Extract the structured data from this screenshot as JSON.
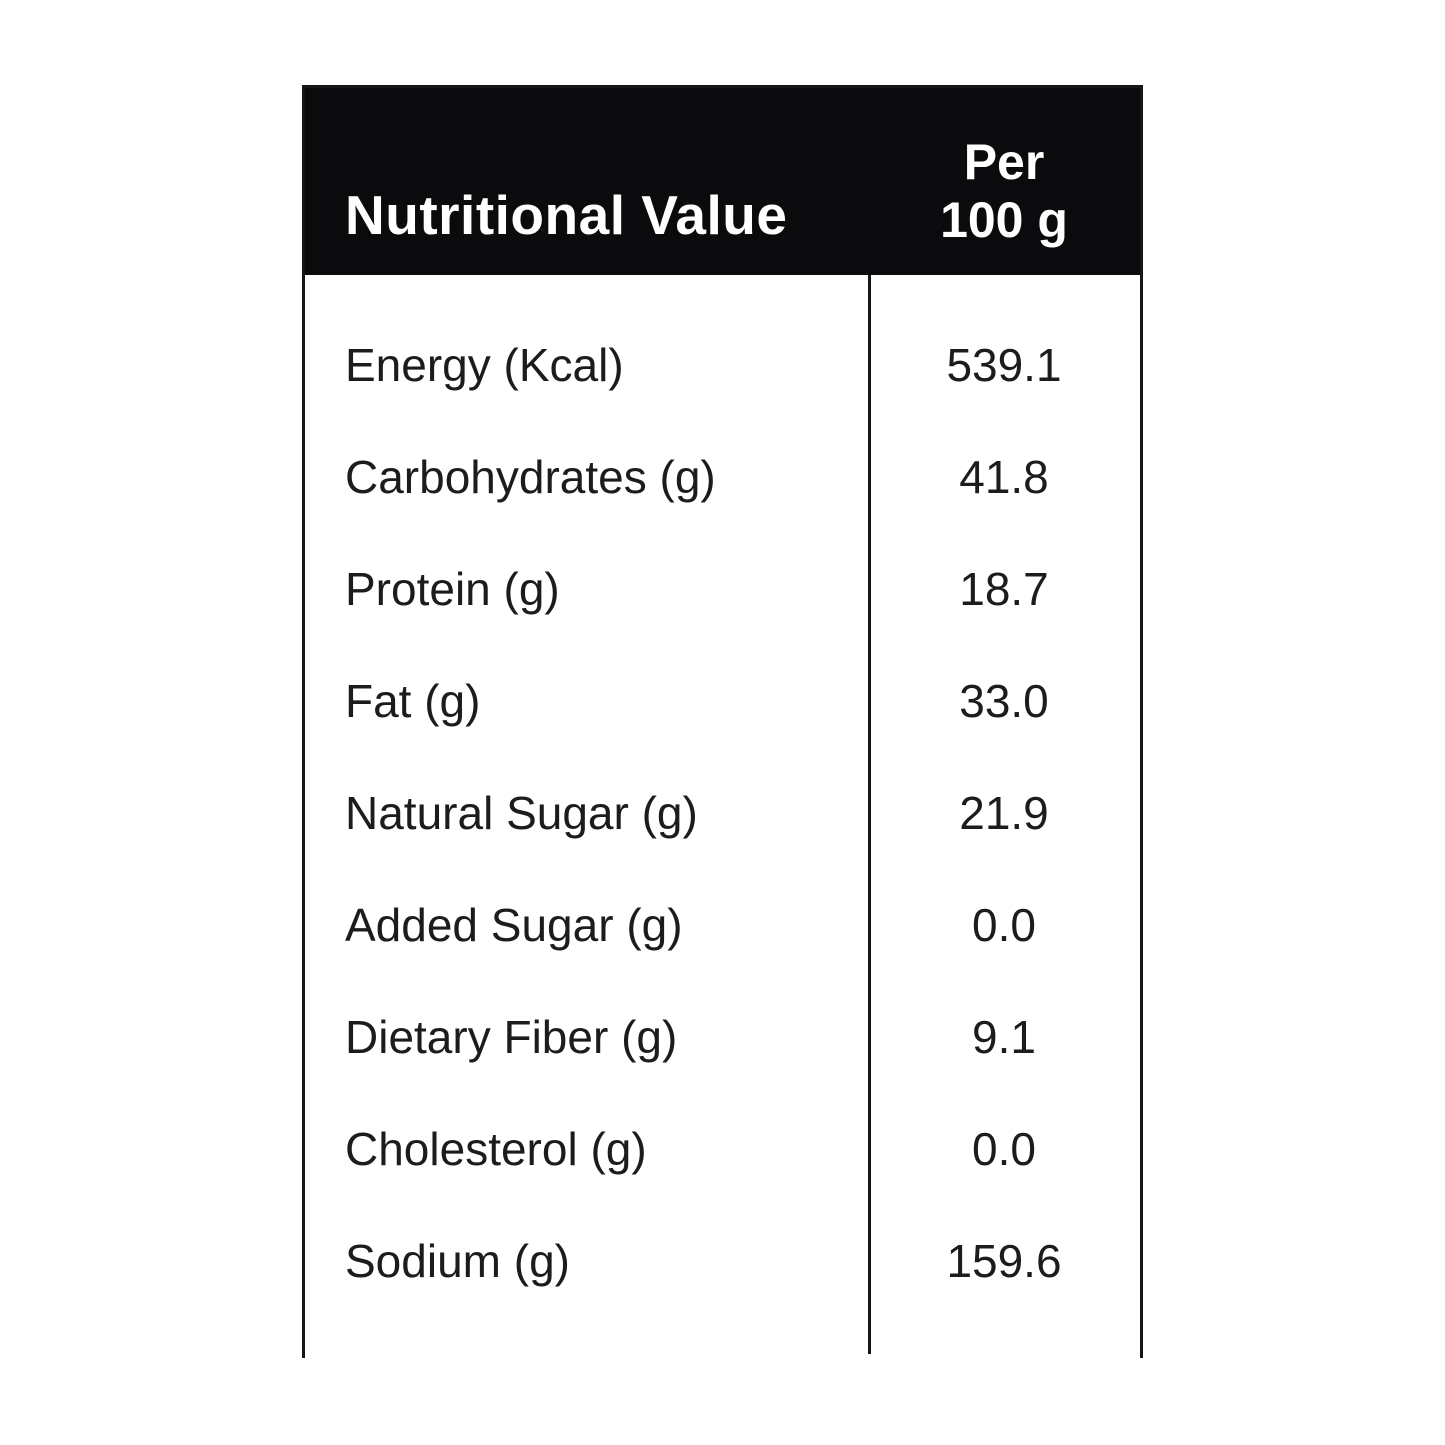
{
  "table": {
    "header": {
      "title": "Nutritional Value",
      "unit_line1": "Per",
      "unit_line2": "100 g"
    },
    "rows": [
      {
        "label": "Energy (Kcal)",
        "value": "539.1"
      },
      {
        "label": "Carbohydrates (g)",
        "value": "41.8"
      },
      {
        "label": "Protein (g)",
        "value": "18.7"
      },
      {
        "label": "Fat (g)",
        "value": "33.0"
      },
      {
        "label": "Natural Sugar (g)",
        "value": "21.9"
      },
      {
        "label": "Added Sugar (g)",
        "value": "0.0"
      },
      {
        "label": "Dietary Fiber (g)",
        "value": "9.1"
      },
      {
        "label": "Cholesterol (g)",
        "value": "0.0"
      },
      {
        "label": "Sodium (g)",
        "value": "159.6"
      }
    ],
    "colors": {
      "header_bg": "#0b0b0d",
      "header_text": "#ffffff",
      "body_text": "#1c1c1c",
      "border": "#161616",
      "background": "#ffffff"
    }
  }
}
